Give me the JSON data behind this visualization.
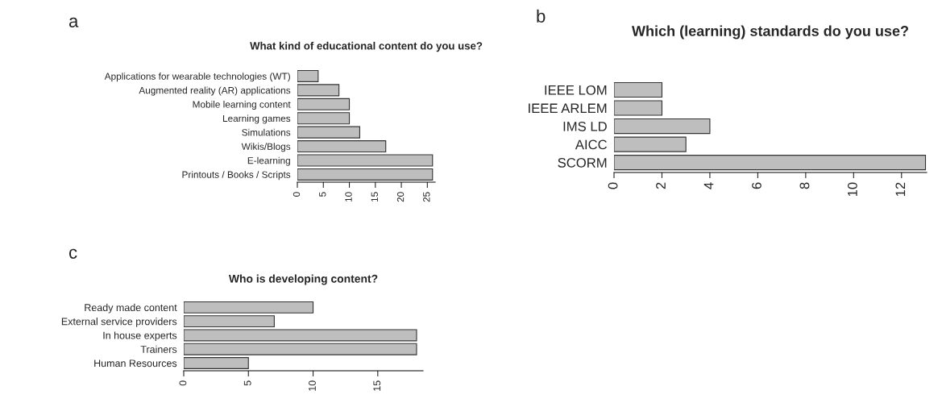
{
  "chart_data": [
    {
      "type": "bar",
      "orientation": "horizontal",
      "title": "What kind of educational content do you use?",
      "annotations": [
        "a"
      ],
      "categories": [
        "Applications for wearable technologies (WT)",
        "Augmented reality (AR) applications",
        "Mobile learning content",
        "Learning games",
        "Simulations",
        "Wikis/Blogs",
        "E-learning",
        "Printouts / Books / Scripts"
      ],
      "values": [
        4,
        8,
        10,
        10,
        12,
        17,
        26,
        26
      ],
      "color": "#bebebe",
      "xlim": [
        0,
        26.5
      ],
      "xticks": [
        0,
        5,
        10,
        15,
        20,
        25
      ],
      "grid": false
    },
    {
      "type": "bar",
      "orientation": "horizontal",
      "title": "Which (learning) standards do you use?",
      "annotations": [
        "b"
      ],
      "categories": [
        "IEEE LOM",
        "IEEE ARLEM",
        "IMS LD",
        "AICC",
        "SCORM"
      ],
      "values": [
        2,
        2,
        4,
        3,
        13
      ],
      "color": "#bebebe",
      "xlim": [
        0,
        13.05
      ],
      "xticks": [
        0,
        2,
        4,
        6,
        8,
        10,
        12
      ],
      "grid": false
    },
    {
      "type": "bar",
      "orientation": "horizontal",
      "title": "Who is developing content?",
      "annotations": [
        "c"
      ],
      "categories": [
        "Ready made content",
        "External service providers",
        "In house experts",
        "Trainers",
        "Human Resources"
      ],
      "values": [
        10,
        7,
        18,
        18,
        5
      ],
      "color": "#bebebe",
      "xlim": [
        0,
        18.5
      ],
      "xticks": [
        0,
        5,
        10,
        15
      ],
      "grid": false
    }
  ]
}
